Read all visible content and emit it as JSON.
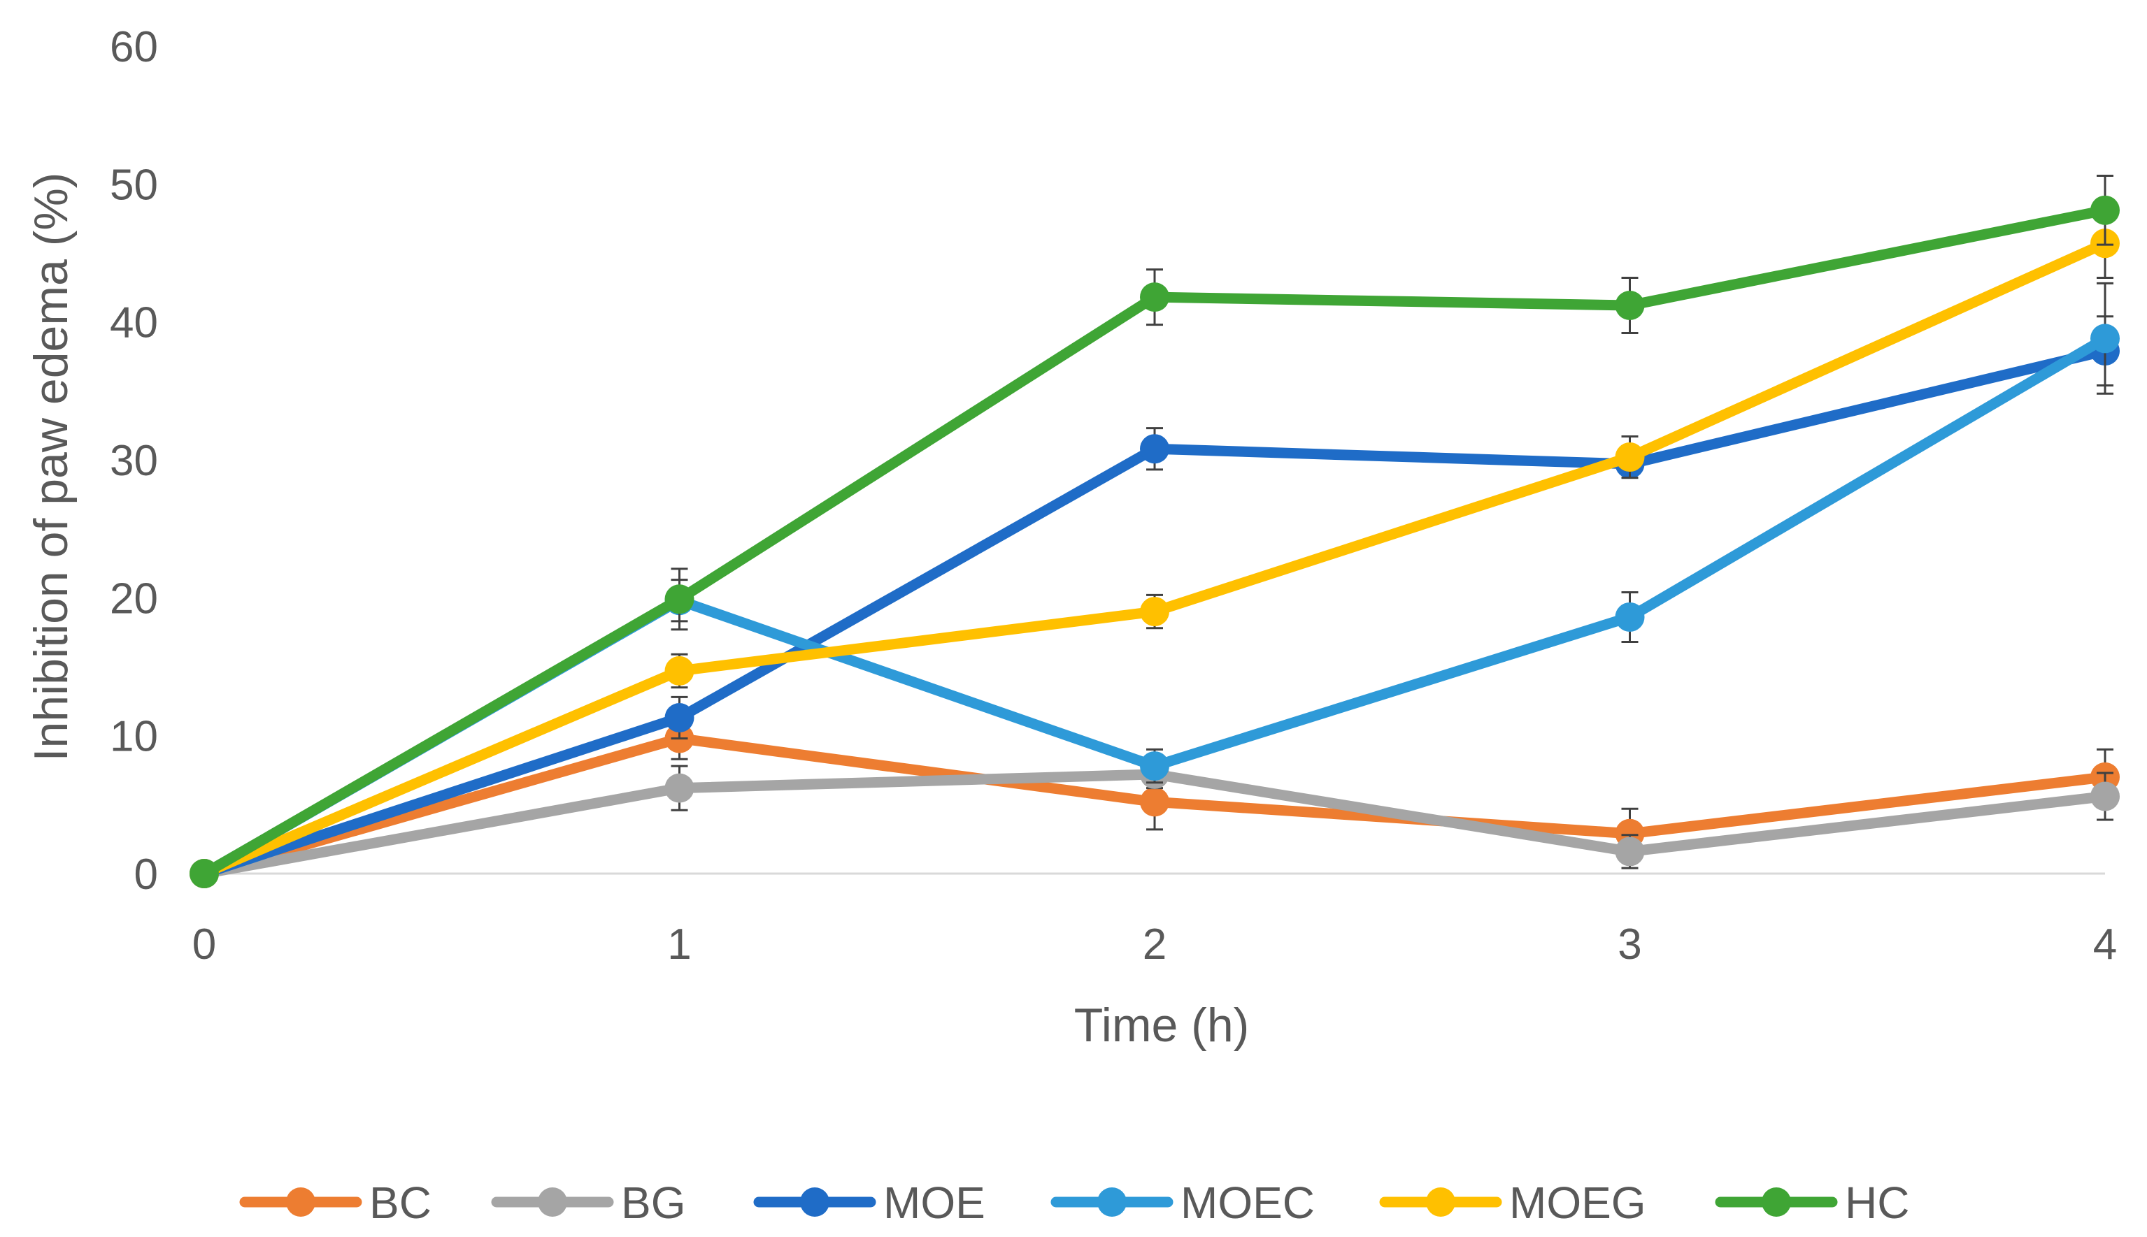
{
  "chart_data": {
    "type": "line",
    "title": "",
    "xlabel": "Time (h)",
    "ylabel": "Inhibition of paw edema  (%)",
    "x": [
      0,
      1,
      2,
      3,
      4
    ],
    "x_ticks": [
      "0",
      "1",
      "2",
      "3",
      "4"
    ],
    "y_ticks": [
      "0",
      "10",
      "20",
      "30",
      "40",
      "50",
      "60"
    ],
    "xlim": [
      0,
      4
    ],
    "ylim": [
      0,
      60
    ],
    "grid": false,
    "legend_position": "bottom",
    "series": [
      {
        "name": "BC",
        "color": "#ED7D31",
        "values": [
          0,
          9.8,
          5.2,
          2.9,
          7.0
        ],
        "errors": [
          0,
          1.5,
          2.0,
          1.8,
          2.0
        ]
      },
      {
        "name": "BG",
        "color": "#A5A5A5",
        "values": [
          0,
          6.2,
          7.2,
          1.6,
          5.6
        ],
        "errors": [
          0,
          1.6,
          1.0,
          1.2,
          1.7
        ]
      },
      {
        "name": "MOE",
        "color": "#1F6CC7",
        "values": [
          0,
          11.3,
          30.8,
          29.7,
          37.9
        ],
        "errors": [
          0,
          1.5,
          1.5,
          1.0,
          2.5
        ]
      },
      {
        "name": "MOEC",
        "color": "#2E9AD8",
        "values": [
          0,
          19.8,
          7.8,
          18.6,
          38.8
        ],
        "errors": [
          0,
          1.5,
          1.2,
          1.8,
          4.0
        ]
      },
      {
        "name": "MOEG",
        "color": "#FFC000",
        "values": [
          0,
          14.7,
          19.0,
          30.2,
          45.7
        ],
        "errors": [
          0,
          1.2,
          1.2,
          1.5,
          2.5
        ]
      },
      {
        "name": "HC",
        "color": "#3FA535",
        "values": [
          0,
          19.9,
          41.8,
          41.2,
          48.1
        ],
        "errors": [
          0,
          2.2,
          2.0,
          2.0,
          2.5
        ]
      }
    ]
  }
}
